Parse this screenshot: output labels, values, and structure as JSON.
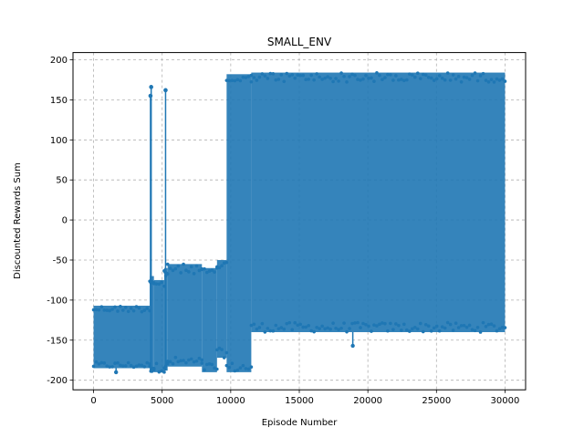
{
  "chart_data": {
    "type": "line",
    "title": "SMALL_ENV",
    "xlabel": "Episode Number",
    "ylabel": "Discounted Rewards Sum",
    "xlim": [
      -1500,
      31500
    ],
    "ylim": [
      -212,
      209
    ],
    "xticks": [
      0,
      5000,
      10000,
      15000,
      20000,
      25000,
      30000
    ],
    "yticks": [
      -200,
      -150,
      -100,
      -50,
      0,
      50,
      100,
      150,
      200
    ],
    "grid": true,
    "grid_style": "dashed",
    "legend": "none",
    "series": [
      {
        "name": "Discounted Rewards Sum",
        "color": "#1f77b4",
        "marker": "circle",
        "phases": [
          {
            "x_range": [
              0,
              4100
            ],
            "y_low": -185,
            "y_high": -107,
            "min_point": -190
          },
          {
            "x_range": [
              4100,
              4400
            ],
            "y_low": -190,
            "y_high": -70,
            "spikes": [
              {
                "x": 4200,
                "y": 166
              },
              {
                "x": 4150,
                "y": 155
              }
            ]
          },
          {
            "x_range": [
              4400,
              5150
            ],
            "y_low": -190,
            "y_high": -75
          },
          {
            "x_range": [
              5150,
              5400
            ],
            "y_low": -188,
            "y_high": -60,
            "spikes": [
              {
                "x": 5250,
                "y": 162
              }
            ]
          },
          {
            "x_range": [
              5400,
              7900
            ],
            "y_low": -183,
            "y_high": -55
          },
          {
            "x_range": [
              7900,
              9000
            ],
            "y_low": -190,
            "y_high": -60
          },
          {
            "x_range": [
              9000,
              9700
            ],
            "y_low": -172,
            "y_high": -50
          },
          {
            "x_range": [
              9700,
              11500
            ],
            "y_low": -190,
            "y_high": 182,
            "dense_band": [
              -185,
              -115
            ]
          },
          {
            "x_range": [
              11500,
              30000
            ],
            "y_low": -140,
            "y_high": 184,
            "min_point": -157
          }
        ]
      }
    ]
  }
}
